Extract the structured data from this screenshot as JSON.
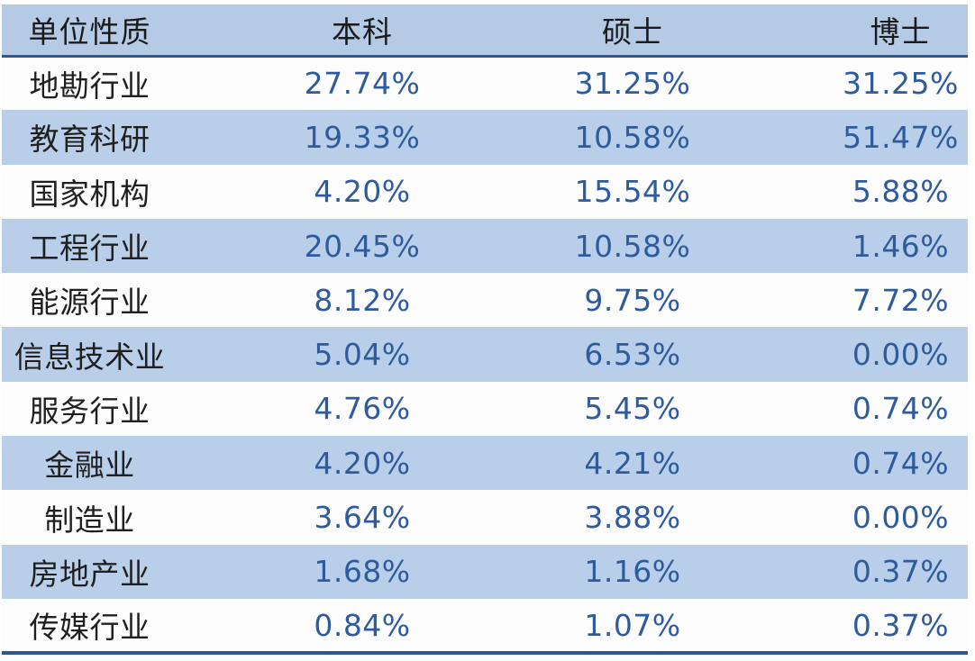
{
  "chart_data": {
    "type": "table",
    "title": "",
    "columns": [
      "单位性质",
      "本科",
      "硕士",
      "博士"
    ],
    "rows": [
      [
        "地勘行业",
        "27.74%",
        "31.25%",
        "31.25%"
      ],
      [
        "教育科研",
        "19.33%",
        "10.58%",
        "51.47%"
      ],
      [
        "国家机构",
        "4.20%",
        "15.54%",
        "5.88%"
      ],
      [
        "工程行业",
        "20.45%",
        "10.58%",
        "1.46%"
      ],
      [
        "能源行业",
        "8.12%",
        "9.75%",
        "7.72%"
      ],
      [
        "信息技术业",
        "5.04%",
        "6.53%",
        "0.00%"
      ],
      [
        "服务行业",
        "4.76%",
        "5.45%",
        "0.74%"
      ],
      [
        "金融业",
        "4.20%",
        "4.21%",
        "0.74%"
      ],
      [
        "制造业",
        "3.64%",
        "3.88%",
        "0.00%"
      ],
      [
        "房地产业",
        "1.68%",
        "1.16%",
        "0.37%"
      ],
      [
        "传媒行业",
        "0.84%",
        "1.07%",
        "0.37%"
      ]
    ],
    "layout_hints": {
      "striped_rows": true,
      "stripe_color": "#b9cfe9",
      "header_background": "#b5cbe5",
      "accent_border_color": "#2c5996",
      "value_text_color": "#2e5b9e",
      "label_text_color": "#1f1f1f"
    }
  }
}
